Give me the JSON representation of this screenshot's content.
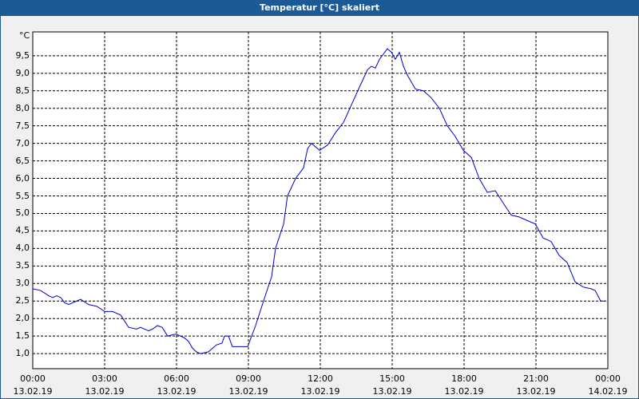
{
  "chart_data": {
    "type": "line",
    "title": "Temperatur [°C] skaliert",
    "y_label": "°C",
    "x": [
      0,
      0.33,
      0.67,
      0.83,
      1.0,
      1.17,
      1.33,
      1.5,
      1.83,
      2.0,
      2.33,
      2.67,
      2.9,
      3.0,
      3.33,
      3.67,
      4.0,
      4.33,
      4.5,
      4.83,
      5.0,
      5.2,
      5.4,
      5.63,
      5.9,
      6.0,
      6.33,
      6.5,
      6.67,
      6.83,
      7.0,
      7.33,
      7.67,
      7.9,
      8.0,
      8.17,
      8.33,
      8.63,
      8.97,
      9.3,
      9.63,
      9.97,
      10.13,
      10.47,
      10.63,
      10.97,
      11.3,
      11.47,
      11.63,
      11.97,
      12.3,
      12.63,
      12.97,
      13.3,
      13.63,
      13.97,
      14.13,
      14.3,
      14.47,
      14.8,
      14.97,
      15.13,
      15.3,
      15.47,
      15.63,
      15.97,
      16.3,
      16.63,
      16.97,
      17.3,
      17.63,
      17.97,
      18.3,
      18.63,
      18.97,
      19.3,
      19.63,
      19.97,
      20.3,
      20.63,
      20.97,
      21.3,
      21.63,
      21.97,
      22.3,
      22.63,
      22.97,
      23.3,
      23.47,
      23.7,
      23.9
    ],
    "series": [
      {
        "name": "Temperatur",
        "color": "#0000c8",
        "values": [
          2.85,
          2.8,
          2.65,
          2.6,
          2.65,
          2.6,
          2.45,
          2.4,
          2.5,
          2.55,
          2.4,
          2.35,
          2.25,
          2.2,
          2.2,
          2.1,
          1.75,
          1.7,
          1.75,
          1.65,
          1.7,
          1.8,
          1.75,
          1.5,
          1.55,
          1.55,
          1.45,
          1.35,
          1.15,
          1.05,
          1.0,
          1.05,
          1.25,
          1.3,
          1.5,
          1.5,
          1.2,
          1.2,
          1.2,
          1.8,
          2.5,
          3.2,
          4.0,
          4.7,
          5.5,
          6.0,
          6.3,
          6.85,
          7.0,
          6.8,
          6.95,
          7.3,
          7.6,
          8.1,
          8.6,
          9.1,
          9.2,
          9.15,
          9.4,
          9.7,
          9.6,
          9.4,
          9.6,
          9.2,
          8.95,
          8.55,
          8.5,
          8.3,
          8.0,
          7.5,
          7.2,
          6.8,
          6.6,
          6.0,
          5.6,
          5.65,
          5.3,
          4.95,
          4.9,
          4.8,
          4.7,
          4.3,
          4.2,
          3.8,
          3.6,
          3.05,
          2.9,
          2.85,
          2.8,
          2.5,
          2.5
        ]
      }
    ],
    "xlim": [
      0,
      24
    ],
    "xticks": [
      {
        "value": 0,
        "label": "00:00\n13.02.19"
      },
      {
        "value": 3,
        "label": "03:00\n13.02.19"
      },
      {
        "value": 6,
        "label": "06:00\n13.02.19"
      },
      {
        "value": 9,
        "label": "09:00\n13.02.19"
      },
      {
        "value": 12,
        "label": "12:00\n13.02.19"
      },
      {
        "value": 15,
        "label": "15:00\n13.02.19"
      },
      {
        "value": 18,
        "label": "18:00\n13.02.19"
      },
      {
        "value": 21,
        "label": "21:00\n13.02.19"
      },
      {
        "value": 24,
        "label": "00:00\n14.02.19"
      }
    ],
    "ylim": [
      0.57,
      10.18
    ],
    "yticks": [
      {
        "value": 1,
        "label": "1,0"
      },
      {
        "value": 1.5,
        "label": "1,5"
      },
      {
        "value": 2,
        "label": "2,0"
      },
      {
        "value": 2.5,
        "label": "2,5"
      },
      {
        "value": 3,
        "label": "3,0"
      },
      {
        "value": 3.5,
        "label": "3,5"
      },
      {
        "value": 4,
        "label": "4,0"
      },
      {
        "value": 4.5,
        "label": "4,5"
      },
      {
        "value": 5,
        "label": "5,0"
      },
      {
        "value": 5.5,
        "label": "5,5"
      },
      {
        "value": 6,
        "label": "6,0"
      },
      {
        "value": 6.5,
        "label": "6,5"
      },
      {
        "value": 7,
        "label": "7,0"
      },
      {
        "value": 7.5,
        "label": "7,5"
      },
      {
        "value": 8,
        "label": "8,0"
      },
      {
        "value": 8.5,
        "label": "8,5"
      },
      {
        "value": 9,
        "label": "9,0"
      },
      {
        "value": 9.5,
        "label": "9,5"
      }
    ],
    "grid": true
  }
}
